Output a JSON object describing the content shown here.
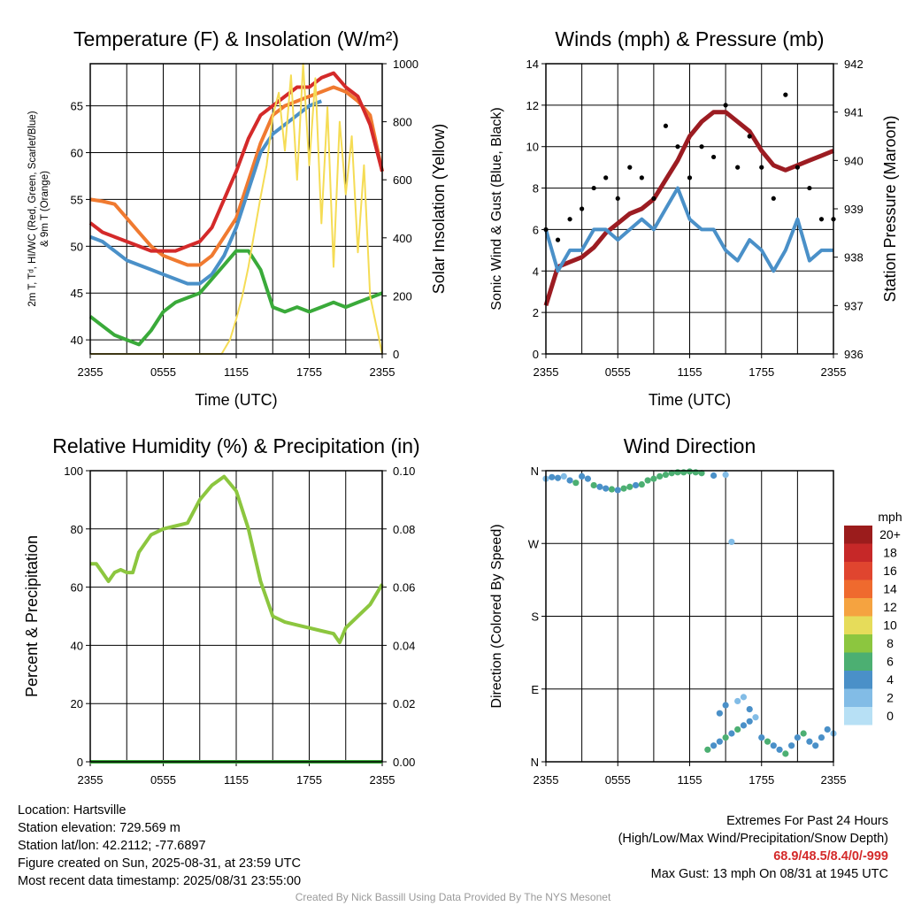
{
  "colors": {
    "red": "#d42a2a",
    "orange": "#f07a30",
    "blue": "#4a90c8",
    "green": "#3aaa3a",
    "yellow": "#f5dc55",
    "maroon": "#9c1c22",
    "black": "#000000",
    "rh": "#8cc63f",
    "precip": "#3aaa3a"
  },
  "chart_data": [
    {
      "type": "line",
      "title": "Temperature (F) & Insolation (W/m²)",
      "xlabel": "Time (UTC)",
      "ylabel": "2m T, Td, HI/WC (Red, Green, Scarlet/Blue) & 9m T (Orange)",
      "y2label": "Solar Insolation (Yellow)",
      "x_ticks": [
        "2355",
        "0555",
        "1155",
        "1755",
        "2355"
      ],
      "ylim": [
        38.5,
        69.5
      ],
      "y_ticks": [
        40,
        45,
        50,
        55,
        60,
        65
      ],
      "y2lim": [
        0,
        1000
      ],
      "y2_ticks": [
        0,
        200,
        400,
        600,
        800,
        1000
      ],
      "grid": true,
      "series": [
        {
          "color": "orange",
          "x": [
            0,
            1,
            2,
            3,
            4,
            5,
            6,
            7,
            8,
            9,
            10,
            11,
            12,
            13,
            14,
            15,
            16,
            17,
            18,
            19,
            20,
            21,
            22,
            23,
            24
          ],
          "values": [
            55,
            54.8,
            54.5,
            53,
            51.5,
            50,
            49,
            48.5,
            48,
            48,
            49,
            51,
            53,
            57,
            61,
            64,
            65,
            65.5,
            66,
            66.5,
            67,
            66.5,
            65.5,
            64,
            58
          ]
        },
        {
          "color": "red",
          "x": [
            0,
            1,
            2,
            3,
            4,
            5,
            6,
            7,
            8,
            9,
            10,
            11,
            12,
            13,
            14,
            15,
            16,
            17,
            18,
            19,
            20,
            21,
            22,
            23,
            24
          ],
          "values": [
            52.5,
            51.5,
            51,
            50.5,
            50,
            49.5,
            49.5,
            49.5,
            50,
            50.5,
            52,
            55,
            58,
            61.5,
            64,
            65,
            66,
            67,
            67,
            68,
            68.5,
            67,
            66,
            63,
            58
          ]
        },
        {
          "color": "blue",
          "x": [
            0,
            1,
            2,
            3,
            4,
            5,
            6,
            7,
            8,
            9,
            10,
            11,
            12,
            13,
            14,
            15,
            16,
            17,
            18,
            19
          ],
          "values": [
            51,
            50.5,
            49.5,
            48.5,
            48,
            47.5,
            47,
            46.5,
            46,
            46,
            47,
            49,
            52,
            56,
            60,
            62,
            63,
            64,
            65,
            65.5
          ]
        },
        {
          "color": "green",
          "x": [
            0,
            1,
            2,
            3,
            4,
            5,
            6,
            7,
            8,
            9,
            10,
            11,
            12,
            13,
            14,
            15,
            16,
            17,
            18,
            19,
            20,
            21,
            22,
            23,
            24
          ],
          "values": [
            42.5,
            41.5,
            40.5,
            40,
            39.5,
            41,
            43,
            44,
            44.5,
            45,
            46.5,
            48,
            49.5,
            49.5,
            47.5,
            43.5,
            43,
            43.5,
            43,
            43.5,
            44,
            43.5,
            44,
            44.5,
            45
          ]
        },
        {
          "color": "yellow",
          "axis": "right",
          "x": [
            0,
            4,
            8,
            10.8,
            11.5,
            12,
            12.5,
            13,
            13.5,
            14,
            14.5,
            15,
            15.5,
            16,
            16.5,
            17,
            17.5,
            18,
            18.5,
            19,
            19.5,
            20,
            20.5,
            21,
            21.5,
            22,
            22.5,
            23,
            23.5,
            24
          ],
          "values": [
            0,
            0,
            0,
            0,
            50,
            120,
            200,
            300,
            420,
            540,
            650,
            820,
            900,
            700,
            960,
            600,
            1000,
            650,
            950,
            450,
            850,
            300,
            800,
            550,
            750,
            350,
            650,
            200,
            100,
            0
          ]
        }
      ]
    },
    {
      "type": "line",
      "title": "Winds (mph) & Pressure (mb)",
      "xlabel": "Time (UTC)",
      "ylabel": "Sonic Wind & Gust (Blue, Black)",
      "y2label": "Station Pressure (Maroon)",
      "x_ticks": [
        "2355",
        "0555",
        "1155",
        "1755",
        "2355"
      ],
      "ylim": [
        0,
        14
      ],
      "y_ticks": [
        0,
        2,
        4,
        6,
        8,
        10,
        12,
        14
      ],
      "y2lim": [
        936,
        942
      ],
      "y2_ticks": [
        936,
        937,
        938,
        939,
        940,
        941,
        942
      ],
      "grid": true,
      "series": [
        {
          "color": "maroon",
          "axis": "right",
          "x": [
            0,
            1,
            2,
            3,
            4,
            5,
            6,
            7,
            8,
            9,
            10,
            11,
            12,
            13,
            14,
            15,
            16,
            17,
            18,
            19,
            20,
            21,
            22,
            23,
            24
          ],
          "values": [
            937,
            937.8,
            937.9,
            938,
            938.2,
            938.5,
            938.7,
            938.9,
            939,
            939.2,
            939.6,
            940,
            940.5,
            940.8,
            941,
            941,
            940.8,
            940.6,
            940.2,
            939.9,
            939.8,
            939.9,
            940,
            940.1,
            940.2
          ]
        },
        {
          "color": "blue",
          "x": [
            0,
            1,
            2,
            3,
            4,
            5,
            6,
            7,
            8,
            9,
            10,
            11,
            12,
            13,
            14,
            15,
            16,
            17,
            18,
            19,
            20,
            21,
            22,
            23,
            24
          ],
          "values": [
            6,
            4,
            5,
            5,
            6,
            6,
            5.5,
            6,
            6.5,
            6,
            7,
            8,
            6.5,
            6,
            6,
            5,
            4.5,
            5.5,
            5,
            4,
            5,
            6.5,
            4.5,
            5,
            5
          ]
        },
        {
          "color": "black",
          "name": "gust",
          "x": [
            0,
            1,
            2,
            3,
            4,
            5,
            6,
            7,
            8,
            9,
            10,
            11,
            12,
            13,
            14,
            15,
            16,
            17,
            18,
            19,
            20,
            21,
            22,
            23,
            24
          ],
          "values": [
            6,
            5.5,
            6.5,
            7,
            8,
            8.5,
            7.5,
            9,
            8.5,
            7.5,
            11,
            10,
            8.5,
            10,
            9.5,
            12,
            9,
            10.5,
            9,
            7.5,
            12.5,
            9,
            8,
            6.5,
            6.5
          ]
        }
      ]
    },
    {
      "type": "line",
      "title": "Relative Humidity (%) & Precipitation (in)",
      "xlabel": "",
      "ylabel": "Percent & Precipitation",
      "x_ticks": [
        "2355",
        "0555",
        "1155",
        "1755",
        "2355"
      ],
      "ylim": [
        0,
        100
      ],
      "y_ticks": [
        0,
        20,
        40,
        60,
        80,
        100
      ],
      "y2lim": [
        0,
        0.1
      ],
      "y2_ticks": [
        "0.00",
        "0.02",
        "0.04",
        "0.06",
        "0.08",
        "0.10"
      ],
      "grid": true,
      "series": [
        {
          "color": "rh",
          "x": [
            0,
            0.5,
            1,
            1.5,
            2,
            2.5,
            3,
            3.5,
            4,
            5,
            6,
            7,
            8,
            9,
            10,
            11,
            12,
            13,
            14,
            15,
            16,
            17,
            18,
            19,
            20,
            20.5,
            21,
            22,
            23,
            24
          ],
          "values": [
            68,
            68,
            65,
            62,
            65,
            66,
            65,
            65,
            72,
            78,
            80,
            81,
            82,
            90,
            95,
            98,
            93,
            80,
            62,
            50,
            48,
            47,
            46,
            45,
            44,
            41,
            46,
            50,
            54,
            61
          ]
        },
        {
          "color": "precip",
          "axis": "right",
          "x": [
            0,
            24
          ],
          "values": [
            0,
            0
          ]
        }
      ]
    },
    {
      "type": "scatter",
      "title": "Wind Direction",
      "xlabel": "",
      "ylabel": "Direction (Colored By Speed)",
      "x_ticks": [
        "2355",
        "0555",
        "1155",
        "1755",
        "2355"
      ],
      "y_ticks": [
        "N",
        "E",
        "S",
        "W",
        "N"
      ],
      "ylim": [
        0,
        360
      ],
      "grid": true,
      "legend": {
        "title": "mph",
        "labels": [
          "20+",
          "18",
          "16",
          "14",
          "12",
          "10",
          "8",
          "6",
          "4",
          "2",
          "0"
        ],
        "colors": [
          "#9b1c1c",
          "#c62828",
          "#e0452f",
          "#ef6a2e",
          "#f5a340",
          "#e6dc5a",
          "#8cc63f",
          "#4caf72",
          "#4a90c8",
          "#82bce6",
          "#b7e0f5"
        ]
      },
      "series": [
        {
          "x": [
            0,
            0.5,
            1,
            1.5,
            2,
            2.5,
            3,
            3.5,
            4,
            4.5,
            5,
            5.5,
            6,
            6.5,
            7,
            7.5,
            8,
            8.5,
            9,
            9.5,
            10,
            10.5,
            11,
            11.5,
            12,
            12.5,
            13,
            14,
            15
          ],
          "values": [
            350,
            352,
            351,
            353,
            348,
            345,
            353,
            350,
            342,
            340,
            338,
            337,
            336,
            338,
            340,
            342,
            343,
            348,
            350,
            353,
            355,
            357,
            358,
            358,
            359,
            358,
            357,
            354,
            355
          ],
          "speeds": [
            3,
            4,
            4,
            2,
            5,
            6,
            5,
            4,
            6,
            5,
            4,
            6,
            5,
            6,
            6,
            5,
            6,
            6,
            6,
            7,
            6,
            6,
            6,
            7,
            6,
            6,
            7,
            4,
            2
          ]
        },
        {
          "x": [
            13.5,
            14,
            14.5,
            15,
            15.5,
            16,
            16.5,
            17,
            17.5,
            18,
            18.5,
            19,
            19.5,
            20,
            20.5,
            21,
            21.5,
            22,
            22.5,
            23,
            23.5,
            24,
            15,
            16,
            16.5,
            17,
            14.5,
            15.5
          ],
          "values": [
            15,
            20,
            25,
            30,
            35,
            40,
            45,
            50,
            55,
            30,
            25,
            20,
            15,
            10,
            20,
            30,
            35,
            25,
            20,
            30,
            40,
            35,
            70,
            75,
            80,
            65,
            60,
            272
          ],
          "speeds": [
            6,
            5,
            4,
            6,
            5,
            6,
            4,
            5,
            3,
            4,
            6,
            5,
            4,
            6,
            5,
            4,
            6,
            5,
            4,
            5,
            4,
            3,
            4,
            3,
            2,
            4,
            5,
            2
          ]
        }
      ]
    }
  ],
  "footer_left": {
    "location": "Location: Hartsville",
    "elevation": "Station elevation: 729.569 m",
    "latlon": "Station lat/lon: 42.2112; -77.6897",
    "created": "Figure created on Sun, 2025-08-31, at 23:59 UTC",
    "recent": "Most recent data timestamp: 2025/08/31 23:55:00"
  },
  "footer_right": {
    "line1": "Extremes For Past 24 Hours",
    "line2": "(High/Low/Max Wind/Precipitation/Snow Depth)",
    "extremes": "68.9/48.5/8.4/0/-999",
    "gust": "Max Gust: 13 mph On 08/31 at 1945 UTC"
  },
  "credit": "Created By Nick Bassill Using Data Provided By The NYS Mesonet"
}
